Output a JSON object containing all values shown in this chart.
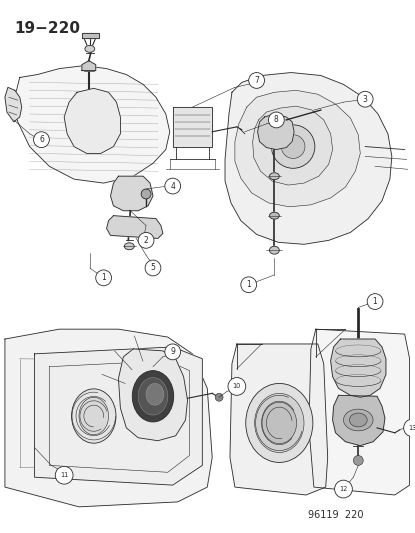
{
  "title": "19−220",
  "watermark": "96119  220",
  "bg_color": "#ffffff",
  "line_color": "#2a2a2a",
  "fig_width": 4.15,
  "fig_height": 5.33,
  "dpi": 100,
  "title_fontsize": 11,
  "title_fontweight": "bold",
  "watermark_fontsize": 7
}
